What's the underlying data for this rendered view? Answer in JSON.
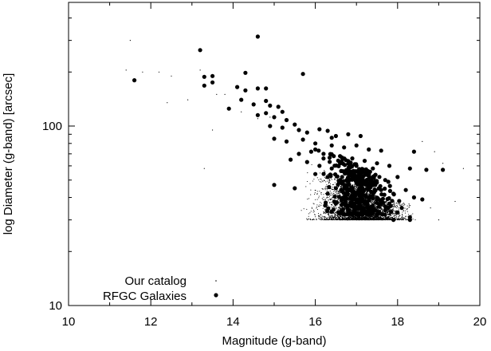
{
  "chart_data": {
    "type": "scatter",
    "title": "",
    "xlabel": "Magnitude (g-band)",
    "ylabel": "log Diameter (g-band) [arcsec]",
    "xlim": [
      10,
      20
    ],
    "ylim": [
      10,
      500
    ],
    "yscale": "log",
    "grid": false,
    "legend_position": "bottom-left",
    "x_ticks": [
      "10",
      "12",
      "14",
      "16",
      "18",
      "20"
    ],
    "y_ticks": [
      "10",
      "100"
    ],
    "series": [
      {
        "name": "Our catalog",
        "marker": "small-dot",
        "color": "#000000",
        "count_approx": 4000,
        "distribution": "dense cloud between g=14.5 and g=19.5, diameters 30 to 100 arcsec, lower envelope at about 30 arcsec, scattered sparse points at bright magnitudes up to about 300 arcsec",
        "points": [
          [
            11.5,
            300
          ],
          [
            11.4,
            205
          ],
          [
            11.8,
            200
          ],
          [
            12.2,
            200
          ],
          [
            12.5,
            190
          ],
          [
            13.2,
            205
          ],
          [
            12.4,
            135
          ],
          [
            12.9,
            140
          ],
          [
            13.6,
            150
          ],
          [
            13.8,
            150
          ],
          [
            13.3,
            58
          ],
          [
            13.5,
            95
          ],
          [
            14.2,
            120
          ],
          [
            14.6,
            110
          ],
          [
            14.9,
            112
          ],
          [
            18.6,
            82
          ],
          [
            18.9,
            72
          ],
          [
            19.1,
            62
          ],
          [
            19.6,
            58
          ],
          [
            19.4,
            38
          ],
          [
            18.8,
            35
          ],
          [
            19.0,
            30
          ]
        ]
      },
      {
        "name": "RFGC Galaxies",
        "marker": "large-dot",
        "color": "#000000",
        "points": [
          [
            13.2,
            265
          ],
          [
            14.6,
            315
          ],
          [
            11.6,
            180
          ],
          [
            13.5,
            190
          ],
          [
            13.5,
            175
          ],
          [
            13.3,
            188
          ],
          [
            13.3,
            168
          ],
          [
            14.3,
            198
          ],
          [
            15.7,
            195
          ],
          [
            14.1,
            165
          ],
          [
            14.3,
            158
          ],
          [
            14.6,
            162
          ],
          [
            14.8,
            162
          ],
          [
            14.2,
            140
          ],
          [
            14.5,
            132
          ],
          [
            14.8,
            138
          ],
          [
            14.9,
            130
          ],
          [
            15.1,
            128
          ],
          [
            13.9,
            125
          ],
          [
            14.6,
            115
          ],
          [
            14.8,
            118
          ],
          [
            15.2,
            120
          ],
          [
            15.0,
            112
          ],
          [
            15.3,
            108
          ],
          [
            15.5,
            102
          ],
          [
            14.9,
            100
          ],
          [
            15.2,
            98
          ],
          [
            15.6,
            95
          ],
          [
            15.8,
            92
          ],
          [
            16.1,
            96
          ],
          [
            16.3,
            94
          ],
          [
            16.5,
            88
          ],
          [
            16.8,
            90
          ],
          [
            17.1,
            88
          ],
          [
            15.0,
            85
          ],
          [
            15.3,
            82
          ],
          [
            15.7,
            84
          ],
          [
            16.0,
            80
          ],
          [
            16.4,
            78
          ],
          [
            16.7,
            76
          ],
          [
            17.0,
            78
          ],
          [
            17.3,
            74
          ],
          [
            17.6,
            73
          ],
          [
            18.4,
            72
          ],
          [
            15.9,
            72
          ],
          [
            16.2,
            70
          ],
          [
            16.6,
            68
          ],
          [
            16.9,
            66
          ],
          [
            17.2,
            64
          ],
          [
            17.5,
            62
          ],
          [
            17.8,
            60
          ],
          [
            15.4,
            65
          ],
          [
            15.8,
            63
          ],
          [
            16.1,
            60
          ],
          [
            16.4,
            58
          ],
          [
            16.8,
            56
          ],
          [
            17.1,
            54
          ],
          [
            17.4,
            52
          ],
          [
            17.7,
            50
          ],
          [
            18.0,
            52
          ],
          [
            18.3,
            58
          ],
          [
            18.7,
            57
          ],
          [
            19.1,
            57
          ],
          [
            16.0,
            54
          ],
          [
            16.3,
            52
          ],
          [
            16.6,
            50
          ],
          [
            17.0,
            48
          ],
          [
            17.3,
            46
          ],
          [
            17.6,
            44
          ],
          [
            17.9,
            42
          ],
          [
            18.2,
            44
          ],
          [
            16.5,
            45
          ],
          [
            16.9,
            43
          ],
          [
            17.2,
            41
          ],
          [
            17.5,
            39
          ],
          [
            17.8,
            37
          ],
          [
            18.1,
            35
          ],
          [
            18.4,
            40
          ],
          [
            18.6,
            39
          ],
          [
            16.7,
            40
          ],
          [
            17.1,
            38
          ],
          [
            17.4,
            36
          ],
          [
            17.7,
            34
          ],
          [
            18.0,
            33
          ],
          [
            18.3,
            31
          ],
          [
            15.0,
            47
          ],
          [
            15.5,
            45
          ],
          [
            16.3,
            42
          ],
          [
            16.8,
            36
          ],
          [
            17.2,
            33
          ],
          [
            17.5,
            32
          ],
          [
            17.9,
            30
          ],
          [
            18.3,
            30
          ],
          [
            16.4,
            86
          ],
          [
            16.0,
            74
          ],
          [
            15.6,
            70
          ],
          [
            17.4,
            58
          ],
          [
            16.6,
            62
          ],
          [
            17.0,
            60
          ],
          [
            16.2,
            66
          ]
        ]
      }
    ]
  }
}
